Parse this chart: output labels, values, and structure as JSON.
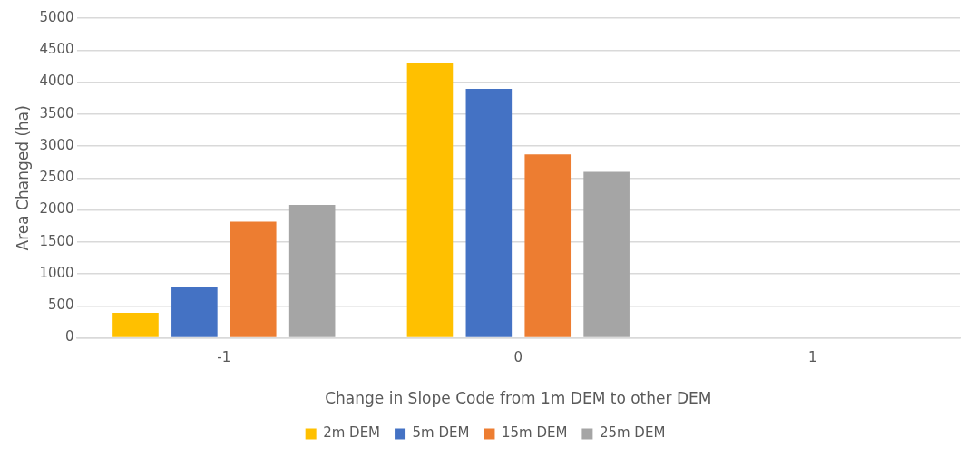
{
  "chart_data": {
    "type": "bar",
    "xlabel": "Change in Slope Code from 1m DEM to other DEM",
    "ylabel": "Area Changed (ha)",
    "categories": [
      "-1",
      "0",
      "1"
    ],
    "series": [
      {
        "name": "2m DEM",
        "color": "#ffc000",
        "values": [
          390,
          4305,
          0
        ]
      },
      {
        "name": "5m DEM",
        "color": "#4472c4",
        "values": [
          790,
          3895,
          0
        ]
      },
      {
        "name": "15m DEM",
        "color": "#ed7d31",
        "values": [
          1815,
          2870,
          0
        ]
      },
      {
        "name": "25m DEM",
        "color": "#a5a5a5",
        "values": [
          2080,
          2595,
          0
        ]
      }
    ],
    "ylim": [
      0,
      5000
    ],
    "yticks": [
      0,
      500,
      1000,
      1500,
      2000,
      2500,
      3000,
      3500,
      4000,
      4500,
      5000
    ],
    "grid": "y",
    "legend": "bottom"
  }
}
